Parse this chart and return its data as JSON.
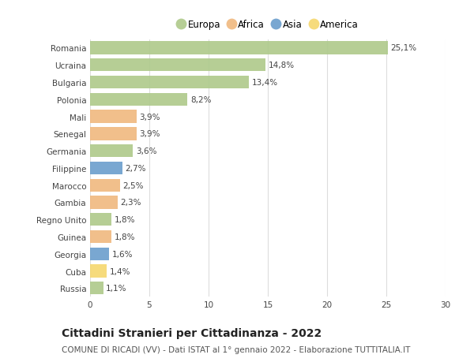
{
  "categories": [
    "Romania",
    "Ucraina",
    "Bulgaria",
    "Polonia",
    "Mali",
    "Senegal",
    "Germania",
    "Filippine",
    "Marocco",
    "Gambia",
    "Regno Unito",
    "Guinea",
    "Georgia",
    "Cuba",
    "Russia"
  ],
  "values": [
    25.1,
    14.8,
    13.4,
    8.2,
    3.9,
    3.9,
    3.6,
    2.7,
    2.5,
    2.3,
    1.8,
    1.8,
    1.6,
    1.4,
    1.1
  ],
  "labels": [
    "25,1%",
    "14,8%",
    "13,4%",
    "8,2%",
    "3,9%",
    "3,9%",
    "3,6%",
    "2,7%",
    "2,5%",
    "2,3%",
    "1,8%",
    "1,8%",
    "1,6%",
    "1,4%",
    "1,1%"
  ],
  "continents": [
    "Europa",
    "Europa",
    "Europa",
    "Europa",
    "Africa",
    "Africa",
    "Europa",
    "Asia",
    "Africa",
    "Africa",
    "Europa",
    "Africa",
    "Asia",
    "America",
    "Europa"
  ],
  "continent_colors": {
    "Europa": "#aec98a",
    "Africa": "#f0b87e",
    "Asia": "#6b9ecc",
    "America": "#f5d76e"
  },
  "legend_order": [
    "Europa",
    "Africa",
    "Asia",
    "America"
  ],
  "title": "Cittadini Stranieri per Cittadinanza - 2022",
  "subtitle": "COMUNE DI RICADI (VV) - Dati ISTAT al 1° gennaio 2022 - Elaborazione TUTTITALIA.IT",
  "xlim": [
    0,
    30
  ],
  "xticks": [
    0,
    5,
    10,
    15,
    20,
    25,
    30
  ],
  "background_color": "#ffffff",
  "grid_color": "#dddddd",
  "bar_height": 0.75,
  "title_fontsize": 10,
  "subtitle_fontsize": 7.5,
  "label_fontsize": 7.5,
  "tick_fontsize": 7.5,
  "legend_fontsize": 8.5
}
